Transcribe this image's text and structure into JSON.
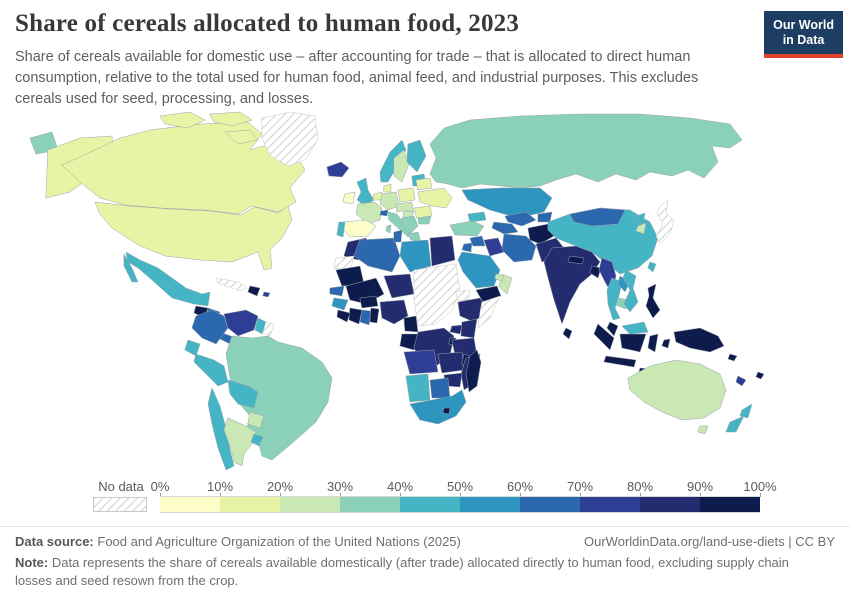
{
  "header": {
    "title": "Share of cereals allocated to human food, 2023",
    "subtitle": "Share of cereals available for domestic use – after accounting for trade – that is allocated to direct human consumption, relative to the total used for human food, animal feed, and industrial purposes. This excludes cereals used for seed, processing, and losses."
  },
  "logo": {
    "line1": "Our World",
    "line2": "in Data",
    "bg_color": "#1d3d63",
    "accent_color": "#e0422e"
  },
  "legend": {
    "no_data_label": "No data",
    "tick_labels": [
      "0%",
      "10%",
      "20%",
      "30%",
      "40%",
      "50%",
      "60%",
      "70%",
      "80%",
      "90%",
      "100%"
    ]
  },
  "footer": {
    "source_label": "Data source:",
    "source_text": "Food and Agriculture Organization of the United Nations (2025)",
    "link": "OurWorldinData.org/land-use-diets",
    "separator": " | ",
    "license": "CC BY",
    "note_label": "Note:",
    "note_text": "Data represents the share of cereals available domestically (after trade) allocated directly to human food, excluding supply chain losses and seed resown from the crop."
  },
  "chart_data": {
    "type": "choropleth_map",
    "title": "Share of cereals allocated to human food",
    "year": 2023,
    "unit": "%",
    "legend_position": "bottom",
    "scale": {
      "bucket_ranges": [
        "0-10",
        "10-20",
        "20-30",
        "30-40",
        "40-50",
        "50-60",
        "60-70",
        "70-80",
        "80-90",
        "90-100"
      ],
      "colors": [
        "#fdfdca",
        "#e8f4a5",
        "#c9e8b4",
        "#8bd1ba",
        "#45b4c4",
        "#2d95c0",
        "#2b68ae",
        "#2e3e95",
        "#232c6e",
        "#0d1c4d"
      ],
      "no_data_pattern": "diagonal-hatch"
    },
    "regions": {
      "canada": {
        "name": "Canada",
        "range": "10-20"
      },
      "greenland": {
        "name": "Greenland",
        "range": "no-data"
      },
      "usa": {
        "name": "United States",
        "range": "10-20"
      },
      "chukotka": {
        "name": "Russia (Chukotka)",
        "range": "30-40"
      },
      "mexico": {
        "name": "Mexico",
        "range": "40-50"
      },
      "guatemala": {
        "name": "Guatemala",
        "range": "90-100"
      },
      "honduras": {
        "name": "Honduras",
        "range": "60-70"
      },
      "nicaragua": {
        "name": "Nicaragua",
        "range": "60-70"
      },
      "costa-rica-panama": {
        "name": "Costa Rica & Panama",
        "range": "60-70"
      },
      "cuba": {
        "name": "Cuba",
        "range": "no-data"
      },
      "hispaniola": {
        "name": "Haiti & Dominican Republic",
        "range": "90-100"
      },
      "puerto-rico": {
        "name": "Puerto Rico",
        "range": "70-80"
      },
      "colombia": {
        "name": "Colombia",
        "range": "60-70"
      },
      "venezuela": {
        "name": "Venezuela",
        "range": "70-80"
      },
      "guyana": {
        "name": "Guyana",
        "range": "40-50"
      },
      "suriname": {
        "name": "Suriname",
        "range": "no-data"
      },
      "ecuador": {
        "name": "Ecuador",
        "range": "40-50"
      },
      "peru": {
        "name": "Peru",
        "range": "40-50"
      },
      "brazil": {
        "name": "Brazil",
        "range": "30-40"
      },
      "bolivia": {
        "name": "Bolivia",
        "range": "40-50"
      },
      "paraguay": {
        "name": "Paraguay",
        "range": "20-30"
      },
      "chile": {
        "name": "Chile",
        "range": "40-50"
      },
      "argentina": {
        "name": "Argentina",
        "range": "20-30"
      },
      "uruguay": {
        "name": "Uruguay",
        "range": "40-50"
      },
      "iceland": {
        "name": "Iceland",
        "range": "70-80"
      },
      "ireland": {
        "name": "Ireland",
        "range": "0-10"
      },
      "uk": {
        "name": "United Kingdom",
        "range": "40-50"
      },
      "norway": {
        "name": "Norway",
        "range": "40-50"
      },
      "sweden": {
        "name": "Sweden",
        "range": "20-30"
      },
      "finland": {
        "name": "Finland",
        "range": "40-50"
      },
      "baltics": {
        "name": "Baltic states",
        "range": "40-50"
      },
      "denmark": {
        "name": "Denmark",
        "range": "10-20"
      },
      "benelux": {
        "name": "Benelux",
        "range": "10-20"
      },
      "germany": {
        "name": "Germany",
        "range": "20-30"
      },
      "france": {
        "name": "France",
        "range": "20-30"
      },
      "spain": {
        "name": "Spain",
        "range": "0-10"
      },
      "portugal": {
        "name": "Portugal",
        "range": "40-50"
      },
      "switzerland": {
        "name": "Switzerland",
        "range": "60-70"
      },
      "italy": {
        "name": "Italy",
        "range": "30-40"
      },
      "austria-czechia": {
        "name": "Austria & Czechia",
        "range": "20-30"
      },
      "poland": {
        "name": "Poland",
        "range": "10-20"
      },
      "hungary": {
        "name": "Hungary",
        "range": "20-30"
      },
      "balkans": {
        "name": "Balkans",
        "range": "30-40"
      },
      "greece": {
        "name": "Greece",
        "range": "30-40"
      },
      "romania": {
        "name": "Romania",
        "range": "10-20"
      },
      "bulgaria": {
        "name": "Bulgaria",
        "range": "30-40"
      },
      "belarus": {
        "name": "Belarus",
        "range": "10-20"
      },
      "ukraine": {
        "name": "Ukraine",
        "range": "10-20"
      },
      "russia": {
        "name": "Russia",
        "range": "30-40"
      },
      "kazakhstan": {
        "name": "Kazakhstan",
        "range": "50-60"
      },
      "uzbekistan": {
        "name": "Uzbekistan",
        "range": "60-70"
      },
      "turkmenistan": {
        "name": "Turkmenistan",
        "range": "60-70"
      },
      "kyrgyzstan-tajikistan": {
        "name": "Kyrgyzstan & Tajikistan",
        "range": "60-70"
      },
      "caucasus": {
        "name": "Caucasus",
        "range": "40-50"
      },
      "turkey": {
        "name": "Turkey",
        "range": "30-40"
      },
      "syria": {
        "name": "Syria",
        "range": "60-70"
      },
      "jordan-israel": {
        "name": "Jordan & Israel",
        "range": "60-70"
      },
      "iraq": {
        "name": "Iraq",
        "range": "70-80"
      },
      "iran": {
        "name": "Iran",
        "range": "60-70"
      },
      "afghanistan": {
        "name": "Afghanistan",
        "range": "90-100"
      },
      "pakistan": {
        "name": "Pakistan",
        "range": "80-90"
      },
      "saudi-arabia": {
        "name": "Saudi Arabia",
        "range": "50-60"
      },
      "yemen": {
        "name": "Yemen",
        "range": "90-100"
      },
      "oman": {
        "name": "Oman",
        "range": "20-30"
      },
      "uae": {
        "name": "United Arab Emirates",
        "range": "20-30"
      },
      "india": {
        "name": "India",
        "range": "80-90"
      },
      "nepal": {
        "name": "Nepal",
        "range": "90-100"
      },
      "bangladesh": {
        "name": "Bangladesh",
        "range": "90-100"
      },
      "sri-lanka": {
        "name": "Sri Lanka",
        "range": "90-100"
      },
      "myanmar": {
        "name": "Myanmar",
        "range": "70-80"
      },
      "thailand": {
        "name": "Thailand",
        "range": "40-50"
      },
      "laos": {
        "name": "Laos",
        "range": "50-60"
      },
      "cambodia": {
        "name": "Cambodia",
        "range": "30-40"
      },
      "vietnam": {
        "name": "Vietnam",
        "range": "40-50"
      },
      "china": {
        "name": "China",
        "range": "40-50"
      },
      "mongolia": {
        "name": "Mongolia",
        "range": "60-70"
      },
      "taiwan": {
        "name": "Taiwan",
        "range": "40-50"
      },
      "north-korea": {
        "name": "North Korea",
        "range": "40-50"
      },
      "south-korea": {
        "name": "South Korea",
        "range": "20-30"
      },
      "japan": {
        "name": "Japan",
        "range": "no-data"
      },
      "philippines": {
        "name": "Philippines",
        "range": "90-100"
      },
      "malay-peninsula": {
        "name": "Malaysia (peninsula)",
        "range": "90-100"
      },
      "borneo-malaysia": {
        "name": "Malaysia (Borneo)",
        "range": "40-50"
      },
      "borneo-indonesia": {
        "name": "Indonesia (Kalimantan)",
        "range": "90-100"
      },
      "sumatra": {
        "name": "Indonesia (Sumatra)",
        "range": "90-100"
      },
      "java": {
        "name": "Indonesia (Java)",
        "range": "90-100"
      },
      "sulawesi": {
        "name": "Indonesia (Sulawesi)",
        "range": "90-100"
      },
      "lesser-sunda": {
        "name": "Indonesia (Lesser Sunda)",
        "range": "90-100"
      },
      "maluku": {
        "name": "Indonesia (Maluku)",
        "range": "90-100"
      },
      "new-guinea": {
        "name": "Papua New Guinea",
        "range": "90-100"
      },
      "solomon": {
        "name": "Solomon Islands",
        "range": "90-100"
      },
      "vanuatu-new-caledonia": {
        "name": "Vanuatu & New Caledonia",
        "range": "70-80"
      },
      "fiji": {
        "name": "Fiji",
        "range": "90-100"
      },
      "morocco": {
        "name": "Morocco",
        "range": "80-90"
      },
      "western-sahara": {
        "name": "Western Sahara",
        "range": "no-data"
      },
      "algeria": {
        "name": "Algeria",
        "range": "60-70"
      },
      "tunisia": {
        "name": "Tunisia",
        "range": "60-70"
      },
      "libya": {
        "name": "Libya",
        "range": "50-60"
      },
      "egypt": {
        "name": "Egypt",
        "range": "80-90"
      },
      "mauritania": {
        "name": "Mauritania",
        "range": "90-100"
      },
      "senegal": {
        "name": "Senegal",
        "range": "60-70"
      },
      "mali": {
        "name": "Mali",
        "range": "90-100"
      },
      "niger": {
        "name": "Niger",
        "range": "80-90"
      },
      "chad-sudan-car": {
        "name": "Chad, Sudan, South Sudan & CAR",
        "range": "no-data"
      },
      "eritrea": {
        "name": "Eritrea",
        "range": "no-data"
      },
      "ethiopia": {
        "name": "Ethiopia",
        "range": "80-90"
      },
      "somalia": {
        "name": "Somalia",
        "range": "no-data"
      },
      "guinea": {
        "name": "Guinea",
        "range": "50-60"
      },
      "sierra-leone-liberia": {
        "name": "Sierra Leone & Liberia",
        "range": "90-100"
      },
      "ivory-coast": {
        "name": "Côte d'Ivoire",
        "range": "90-100"
      },
      "ghana": {
        "name": "Ghana",
        "range": "60-70"
      },
      "togo-benin": {
        "name": "Togo & Benin",
        "range": "90-100"
      },
      "burkina-faso": {
        "name": "Burkina Faso",
        "range": "90-100"
      },
      "nigeria": {
        "name": "Nigeria",
        "range": "80-90"
      },
      "cameroon": {
        "name": "Cameroon",
        "range": "90-100"
      },
      "gabon-congo": {
        "name": "Gabon & Congo",
        "range": "90-100"
      },
      "drc": {
        "name": "Democratic Republic of Congo",
        "range": "80-90"
      },
      "uganda": {
        "name": "Uganda",
        "range": "80-90"
      },
      "kenya": {
        "name": "Kenya",
        "range": "80-90"
      },
      "rwanda-burundi": {
        "name": "Rwanda & Burundi",
        "range": "90-100"
      },
      "tanzania": {
        "name": "Tanzania",
        "range": "80-90"
      },
      "angola": {
        "name": "Angola",
        "range": "70-80"
      },
      "zambia": {
        "name": "Zambia",
        "range": "80-90"
      },
      "malawi": {
        "name": "Malawi",
        "range": "90-100"
      },
      "mozambique": {
        "name": "Mozambique",
        "range": "80-90"
      },
      "zimbabwe": {
        "name": "Zimbabwe",
        "range": "80-90"
      },
      "namibia": {
        "name": "Namibia",
        "range": "40-50"
      },
      "botswana": {
        "name": "Botswana",
        "range": "60-70"
      },
      "south-africa": {
        "name": "South Africa",
        "range": "50-60"
      },
      "lesotho": {
        "name": "Lesotho",
        "range": "90-100"
      },
      "madagascar": {
        "name": "Madagascar",
        "range": "90-100"
      },
      "australia": {
        "name": "Australia",
        "range": "20-30"
      },
      "new-zealand": {
        "name": "New Zealand",
        "range": "40-50"
      }
    }
  }
}
